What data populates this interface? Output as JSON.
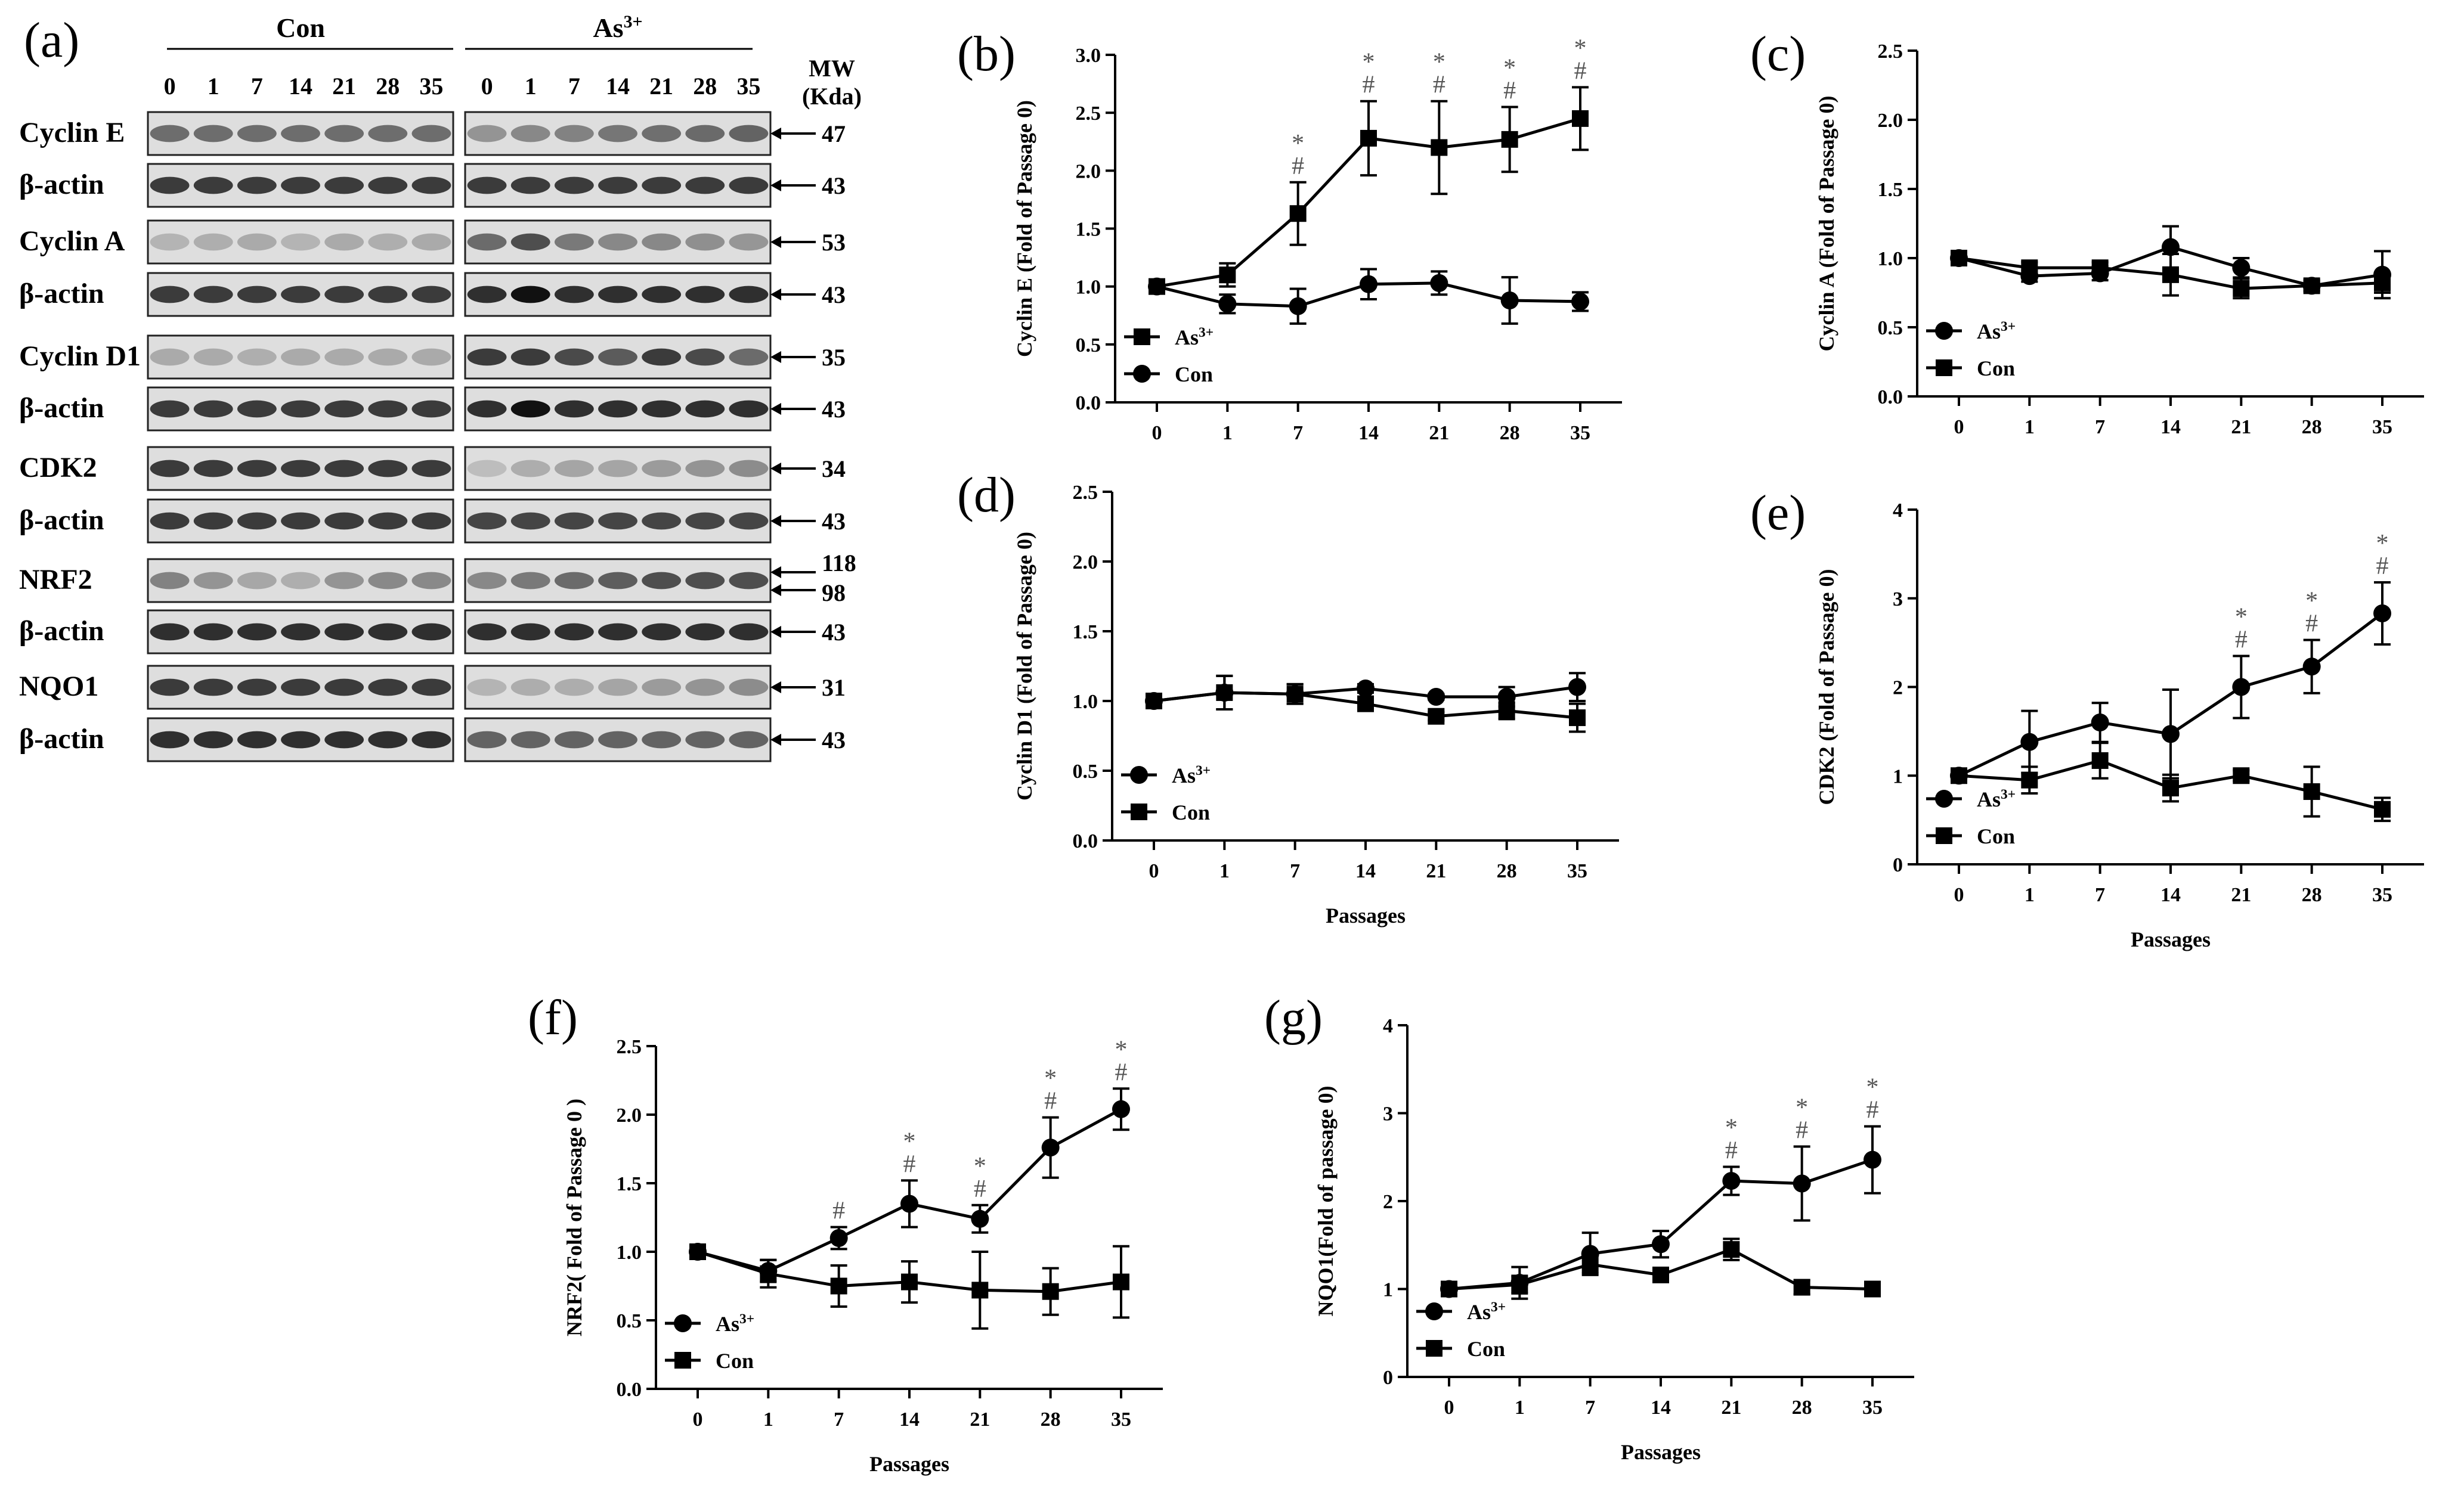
{
  "panel_a": {
    "letter": "(a)",
    "groups": [
      "Con",
      "As"
    ],
    "group_sup": "3+",
    "lanes": [
      "0",
      "1",
      "7",
      "14",
      "21",
      "28",
      "35"
    ],
    "mw_header": [
      "MW",
      "(Kda)"
    ],
    "blots": [
      {
        "label": "Cyclin E",
        "mw": [
          "47"
        ],
        "con_intensity": 0.55,
        "as_intensity": 0.6,
        "con_profile": [
          1,
          1,
          1,
          1,
          1,
          1,
          1
        ],
        "as_profile": [
          0.6,
          0.7,
          0.75,
          0.85,
          0.9,
          0.95,
          1.0
        ]
      },
      {
        "label": "β-actin",
        "mw": [
          "43"
        ],
        "con_intensity": 0.8,
        "as_intensity": 0.8,
        "con_profile": [
          1,
          1,
          1,
          1,
          1,
          1,
          1
        ],
        "as_profile": [
          1,
          1,
          1,
          1,
          1,
          1,
          1
        ]
      },
      {
        "label": "Cyclin A",
        "mw": [
          "53"
        ],
        "con_intensity": 0.25,
        "as_intensity": 0.7,
        "con_profile": [
          0.8,
          0.9,
          1,
          0.8,
          1,
          0.9,
          1
        ],
        "as_profile": [
          0.8,
          1,
          0.7,
          0.6,
          0.6,
          0.55,
          0.5
        ]
      },
      {
        "label": "β-actin",
        "mw": [
          "43"
        ],
        "con_intensity": 0.8,
        "as_intensity": 0.85,
        "con_profile": [
          1,
          1,
          1,
          1,
          1,
          1,
          1
        ],
        "as_profile": [
          1,
          1.2,
          1,
          1,
          1,
          1,
          1
        ]
      },
      {
        "label": "Cyclin D1",
        "mw": [
          "35"
        ],
        "con_intensity": 0.25,
        "as_intensity": 0.8,
        "con_profile": [
          1,
          1,
          0.9,
          1,
          1,
          1,
          1
        ],
        "as_profile": [
          1,
          1,
          0.9,
          0.8,
          1,
          0.9,
          0.7
        ]
      },
      {
        "label": "β-actin",
        "mw": [
          "43"
        ],
        "con_intensity": 0.8,
        "as_intensity": 0.85,
        "con_profile": [
          1,
          1,
          1,
          1,
          1,
          1,
          1
        ],
        "as_profile": [
          1,
          1.2,
          1,
          1,
          1,
          1,
          1
        ]
      },
      {
        "label": "CDK2",
        "mw": [
          "34"
        ],
        "con_intensity": 0.8,
        "as_intensity": 0.4,
        "con_profile": [
          1,
          1,
          1,
          1,
          1,
          1,
          1
        ],
        "as_profile": [
          0.4,
          0.6,
          0.7,
          0.7,
          0.8,
          0.9,
          1.0
        ]
      },
      {
        "label": "β-actin",
        "mw": [
          "43"
        ],
        "con_intensity": 0.8,
        "as_intensity": 0.75,
        "con_profile": [
          1,
          1,
          1,
          1,
          1,
          1,
          1
        ],
        "as_profile": [
          1,
          1,
          1,
          1,
          1,
          1,
          1
        ]
      },
      {
        "label": "NRF2",
        "mw": [
          "118",
          "98"
        ],
        "con_intensity": 0.45,
        "as_intensity": 0.7,
        "con_profile": [
          1,
          0.8,
          0.6,
          0.5,
          0.8,
          0.9,
          0.9
        ],
        "as_profile": [
          0.6,
          0.7,
          0.8,
          0.9,
          1,
          1,
          1
        ]
      },
      {
        "label": "β-actin",
        "mw": [
          "43"
        ],
        "con_intensity": 0.85,
        "as_intensity": 0.85,
        "con_profile": [
          1,
          1,
          1,
          1,
          1,
          1,
          1
        ],
        "as_profile": [
          1,
          1,
          1,
          1,
          1,
          1,
          1
        ]
      },
      {
        "label": "NQO1",
        "mw": [
          "31"
        ],
        "con_intensity": 0.8,
        "as_intensity": 0.4,
        "con_profile": [
          1,
          1,
          1,
          1,
          1,
          1,
          1
        ],
        "as_profile": [
          0.5,
          0.6,
          0.6,
          0.7,
          0.8,
          0.9,
          1.0
        ]
      },
      {
        "label": "β-actin",
        "mw": [
          "43"
        ],
        "con_intensity": 0.85,
        "as_intensity": 0.6,
        "con_profile": [
          1,
          1,
          1,
          1,
          1,
          1,
          1
        ],
        "as_profile": [
          1,
          1,
          1,
          1,
          1,
          1,
          1
        ]
      }
    ]
  },
  "chart_data": [
    {
      "panel": "(b)",
      "type": "line",
      "ylabel": "Cyclin E (Fold of Passage 0)",
      "xlabel": "",
      "categories": [
        "0",
        "1",
        "7",
        "14",
        "21",
        "28",
        "35"
      ],
      "ylim": [
        0,
        3.0
      ],
      "yticks": [
        "0.0",
        "0.5",
        "1.0",
        "1.5",
        "2.0",
        "2.5",
        "3.0"
      ],
      "legend_position": "bottom-left",
      "series": [
        {
          "name": "As",
          "name_sup": "3+",
          "marker": "square",
          "values": [
            1.0,
            1.1,
            1.63,
            2.28,
            2.2,
            2.27,
            2.45
          ],
          "errors": [
            0,
            0.1,
            0.27,
            0.32,
            0.4,
            0.28,
            0.27
          ]
        },
        {
          "name": "Con",
          "marker": "circle",
          "values": [
            1.0,
            0.85,
            0.83,
            1.02,
            1.03,
            0.88,
            0.87
          ],
          "errors": [
            0,
            0.08,
            0.15,
            0.13,
            0.1,
            0.2,
            0.08
          ]
        }
      ],
      "annotations": [
        "",
        "",
        "#*",
        "#*",
        "#*",
        "#*",
        "#*"
      ]
    },
    {
      "panel": "(c)",
      "type": "line",
      "ylabel": "Cyclin A (Fold of Passage 0)",
      "xlabel": "",
      "categories": [
        "0",
        "1",
        "7",
        "14",
        "21",
        "28",
        "35"
      ],
      "ylim": [
        0,
        2.5
      ],
      "yticks": [
        "0.0",
        "0.5",
        "1.0",
        "1.5",
        "2.0",
        "2.5"
      ],
      "legend_position": "bottom-left",
      "series": [
        {
          "name": "As",
          "name_sup": "3+",
          "marker": "circle",
          "values": [
            1.0,
            0.87,
            0.89,
            1.08,
            0.93,
            0.8,
            0.88
          ],
          "errors": [
            0,
            0.04,
            0.05,
            0.15,
            0.07,
            0.03,
            0.17
          ]
        },
        {
          "name": "Con",
          "marker": "square",
          "values": [
            1.0,
            0.93,
            0.93,
            0.88,
            0.78,
            0.8,
            0.82
          ],
          "errors": [
            0,
            0.04,
            0.04,
            0.15,
            0.07,
            0.04,
            0.07
          ]
        }
      ],
      "annotations": [
        "",
        "",
        "",
        "",
        "",
        "",
        ""
      ]
    },
    {
      "panel": "(d)",
      "type": "line",
      "ylabel": "Cyclin D1 (Fold of Passage 0)",
      "xlabel": "Passages",
      "categories": [
        "0",
        "1",
        "7",
        "14",
        "21",
        "28",
        "35"
      ],
      "ylim": [
        0,
        2.5
      ],
      "yticks": [
        "0.0",
        "0.5",
        "1.0",
        "1.5",
        "2.0",
        "2.5"
      ],
      "legend_position": "bottom-left",
      "series": [
        {
          "name": "As",
          "name_sup": "3+",
          "marker": "circle",
          "values": [
            1.0,
            1.06,
            1.05,
            1.09,
            1.03,
            1.03,
            1.1
          ],
          "errors": [
            0,
            0.12,
            0.07,
            0.03,
            0.02,
            0.07,
            0.1
          ]
        },
        {
          "name": "Con",
          "marker": "square",
          "values": [
            1.0,
            1.06,
            1.05,
            0.98,
            0.89,
            0.93,
            0.88
          ],
          "errors": [
            0,
            0.12,
            0.07,
            0.05,
            0.03,
            0.06,
            0.1
          ]
        }
      ],
      "annotations": [
        "",
        "",
        "",
        "",
        "",
        "",
        ""
      ]
    },
    {
      "panel": "(e)",
      "type": "line",
      "ylabel": "CDK2 (Fold of Passage 0)",
      "xlabel": "Passages",
      "categories": [
        "0",
        "1",
        "7",
        "14",
        "21",
        "28",
        "35"
      ],
      "ylim": [
        0,
        4
      ],
      "yticks": [
        "0",
        "1",
        "2",
        "3",
        "4"
      ],
      "legend_position": "bottom-left",
      "series": [
        {
          "name": "As",
          "name_sup": "3+",
          "marker": "circle",
          "values": [
            1.0,
            1.38,
            1.6,
            1.47,
            2.0,
            2.23,
            2.83
          ],
          "errors": [
            0,
            0.35,
            0.22,
            0.5,
            0.35,
            0.3,
            0.35
          ]
        },
        {
          "name": "Con",
          "marker": "square",
          "values": [
            1.0,
            0.95,
            1.17,
            0.86,
            1.0,
            0.82,
            0.62
          ],
          "errors": [
            0,
            0.15,
            0.2,
            0.15,
            0.06,
            0.28,
            0.13
          ]
        }
      ],
      "annotations": [
        "",
        "",
        "",
        "",
        "#*",
        "#*",
        "#*"
      ]
    },
    {
      "panel": "(f)",
      "type": "line",
      "ylabel": "NRF2( Fold of Passage 0 )",
      "xlabel": "Passages",
      "categories": [
        "0",
        "1",
        "7",
        "14",
        "21",
        "28",
        "35"
      ],
      "ylim": [
        0,
        2.5
      ],
      "yticks": [
        "0.0",
        "0.5",
        "1.0",
        "1.5",
        "2.0",
        "2.5"
      ],
      "legend_position": "bottom-left",
      "series": [
        {
          "name": "As",
          "name_sup": "3+",
          "marker": "circle",
          "values": [
            1.0,
            0.86,
            1.1,
            1.35,
            1.24,
            1.76,
            2.04
          ],
          "errors": [
            0,
            0.08,
            0.08,
            0.17,
            0.1,
            0.22,
            0.15
          ]
        },
        {
          "name": "Con",
          "marker": "square",
          "values": [
            1.0,
            0.84,
            0.75,
            0.78,
            0.72,
            0.71,
            0.78
          ],
          "errors": [
            0,
            0.1,
            0.15,
            0.15,
            0.28,
            0.17,
            0.26
          ]
        }
      ],
      "annotations": [
        "",
        "",
        "#",
        "#*",
        "#*",
        "#*",
        "#*"
      ]
    },
    {
      "panel": "(g)",
      "type": "line",
      "ylabel": "NQO1(Fold of passage 0)",
      "xlabel": "Passages",
      "categories": [
        "0",
        "1",
        "7",
        "14",
        "21",
        "28",
        "35"
      ],
      "ylim": [
        0,
        4
      ],
      "yticks": [
        "0",
        "1",
        "2",
        "3",
        "4"
      ],
      "legend_position": "bottom-left",
      "series": [
        {
          "name": "As",
          "name_sup": "3+",
          "marker": "circle",
          "values": [
            1.0,
            1.07,
            1.4,
            1.51,
            2.23,
            2.2,
            2.47
          ],
          "errors": [
            0,
            0.18,
            0.24,
            0.15,
            0.16,
            0.42,
            0.38
          ]
        },
        {
          "name": "Con",
          "marker": "square",
          "values": [
            1.0,
            1.05,
            1.28,
            1.16,
            1.45,
            1.02,
            1.0
          ],
          "errors": [
            0,
            0.1,
            0.1,
            0.06,
            0.12,
            0.08,
            0.05
          ]
        }
      ],
      "annotations": [
        "",
        "",
        "",
        "",
        "#*",
        "#*",
        "#*"
      ]
    }
  ]
}
